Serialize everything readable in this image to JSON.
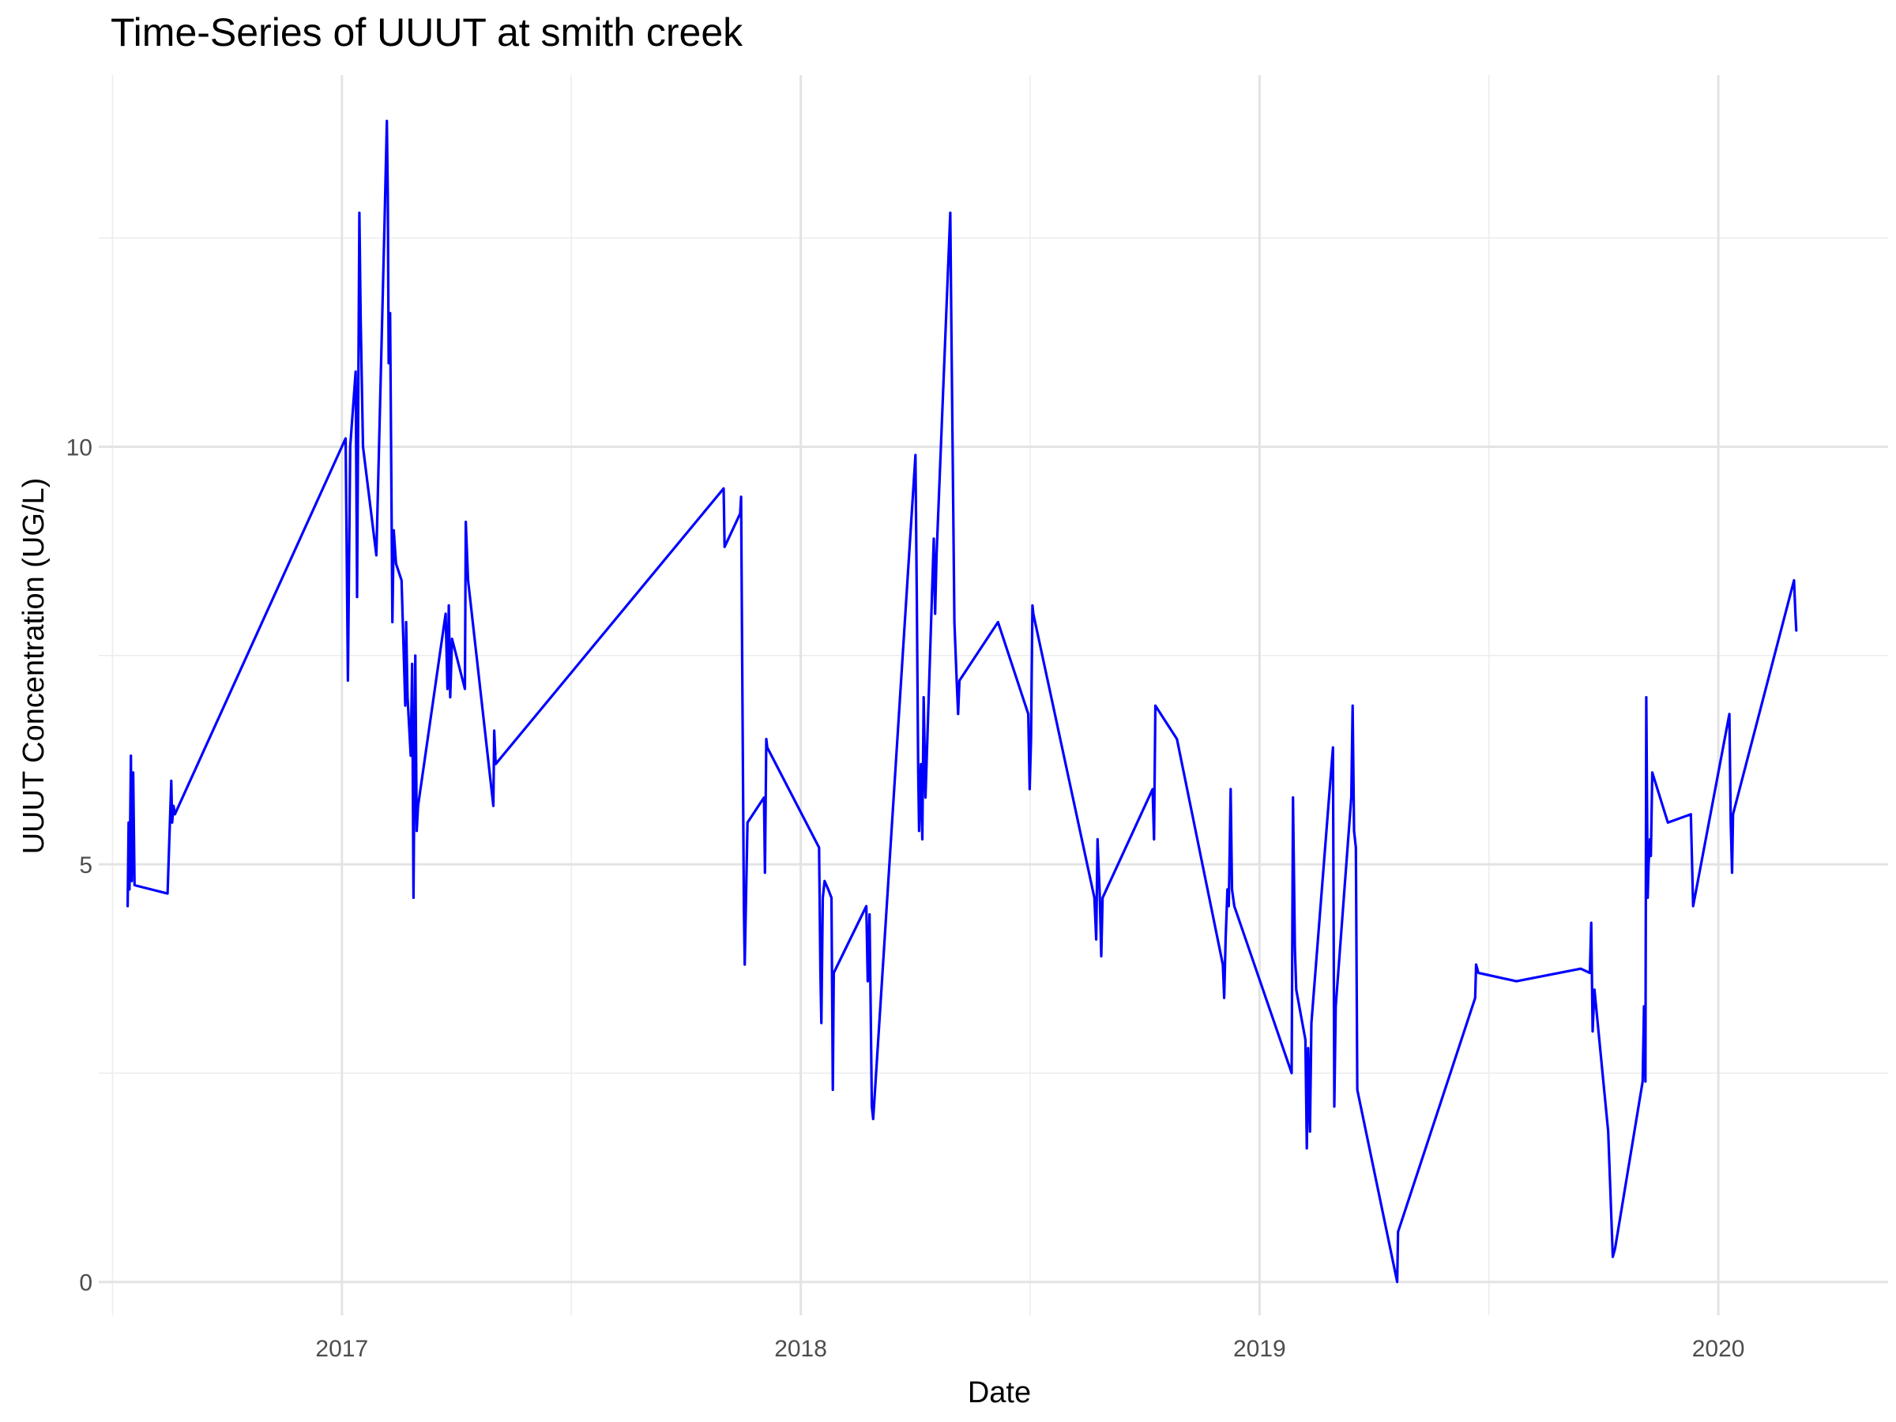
{
  "chart_data": {
    "type": "line",
    "title": "Time-Series of UUUT at smith creek",
    "xlabel": "Date",
    "ylabel": "UUUT Concentration (UG/L)",
    "x_ticks": [
      "2017",
      "2018",
      "2019",
      "2020"
    ],
    "y_ticks": [
      "0",
      "5",
      "10"
    ],
    "xlim": [
      2016.47,
      2020.37
    ],
    "ylim": [
      -0.4,
      14.45
    ],
    "grid": true,
    "line_color": "#0000ff",
    "series": [
      {
        "x": [
          2016.533,
          2016.535,
          2016.537,
          2016.54,
          2016.542,
          2016.545,
          2016.548,
          2016.62,
          2016.628,
          2016.63,
          2016.633,
          2016.636,
          2017.008,
          2017.01,
          2017.013,
          2017.018,
          2017.03,
          2017.033,
          2017.038,
          2017.041,
          2017.046,
          2017.075,
          2017.093,
          2017.098,
          2017.1,
          2017.102,
          2017.105,
          2017.11,
          2017.113,
          2017.118,
          2017.13,
          2017.138,
          2017.14,
          2017.143,
          2017.15,
          2017.153,
          2017.156,
          2017.16,
          2017.163,
          2017.166,
          2017.226,
          2017.23,
          2017.233,
          2017.236,
          2017.24,
          2017.268,
          2017.27,
          2017.275,
          2017.33,
          2017.332,
          2017.335,
          2017.832,
          2017.834,
          2017.868,
          2017.87,
          2017.873,
          2017.876,
          2017.878,
          2017.884,
          2017.92,
          2017.922,
          2017.925,
          2017.927,
          2018.04,
          2018.043,
          2018.045,
          2018.048,
          2018.052,
          2018.06,
          2018.067,
          2018.07,
          2018.072,
          2018.143,
          2018.146,
          2018.15,
          2018.155,
          2018.158,
          2018.25,
          2018.253,
          2018.256,
          2018.258,
          2018.262,
          2018.265,
          2018.268,
          2018.272,
          2018.29,
          2018.293,
          2018.296,
          2018.326,
          2018.328,
          2018.335,
          2018.34,
          2018.343,
          2018.346,
          2018.43,
          2018.496,
          2018.499,
          2018.502,
          2018.505,
          2018.507,
          2018.64,
          2018.644,
          2018.647,
          2018.652,
          2018.655,
          2018.658,
          2018.767,
          2018.77,
          2018.773,
          2018.82,
          2018.92,
          2018.923,
          2018.926,
          2018.93,
          2018.933,
          2018.937,
          2018.94,
          2018.945,
          2019.07,
          2019.073,
          2019.077,
          2019.08,
          2019.1,
          2019.103,
          2019.106,
          2019.11,
          2019.113,
          2019.16,
          2019.163,
          2019.166,
          2019.2,
          2019.203,
          2019.206,
          2019.21,
          2019.213,
          2019.3,
          2019.302,
          2019.47,
          2019.472,
          2019.477,
          2019.56,
          2019.7,
          2019.72,
          2019.723,
          2019.726,
          2019.73,
          2019.76,
          2019.77,
          2019.775,
          2019.835,
          2019.838,
          2019.841,
          2019.843,
          2019.846,
          2019.848,
          2019.851,
          2019.853,
          2019.856,
          2019.89,
          2019.94,
          2019.945,
          2020.024,
          2020.027,
          2020.03,
          2020.032,
          2020.165,
          2020.168,
          2020.17
        ],
        "values": [
          4.5,
          5.5,
          4.7,
          6.3,
          4.8,
          6.1,
          4.75,
          4.65,
          6.0,
          5.5,
          5.7,
          5.6,
          10.1,
          9.0,
          7.2,
          10.0,
          10.9,
          8.2,
          12.8,
          11.5,
          10.0,
          8.7,
          12.7,
          13.9,
          13.0,
          11.0,
          11.6,
          7.9,
          9.0,
          8.6,
          8.4,
          6.9,
          7.9,
          7.0,
          6.3,
          7.4,
          4.6,
          7.5,
          5.4,
          5.7,
          8.0,
          7.1,
          8.1,
          7.0,
          7.7,
          7.1,
          9.1,
          8.4,
          5.7,
          6.6,
          6.2,
          9.5,
          8.8,
          9.2,
          9.4,
          7.0,
          4.5,
          3.8,
          5.5,
          5.8,
          4.9,
          6.5,
          6.4,
          5.2,
          3.7,
          3.1,
          4.6,
          4.8,
          4.7,
          4.6,
          2.3,
          3.7,
          4.5,
          3.6,
          4.4,
          2.1,
          1.95,
          9.9,
          8.2,
          6.1,
          5.4,
          6.2,
          5.3,
          7.0,
          5.8,
          8.9,
          8.0,
          8.7,
          12.8,
          11.6,
          7.9,
          7.2,
          6.8,
          7.2,
          7.9,
          6.8,
          5.9,
          6.5,
          8.1,
          8.0,
          4.6,
          4.1,
          5.3,
          4.6,
          3.9,
          4.6,
          5.9,
          5.3,
          6.9,
          6.5,
          3.8,
          3.4,
          4.1,
          4.7,
          4.5,
          5.9,
          4.7,
          4.5,
          2.5,
          5.8,
          4.0,
          3.5,
          2.9,
          1.6,
          2.8,
          1.8,
          3.1,
          6.4,
          2.1,
          3.3,
          5.8,
          6.9,
          5.4,
          5.2,
          2.3,
          0.0,
          0.6,
          3.4,
          3.8,
          3.7,
          3.6,
          3.75,
          3.7,
          4.3,
          3.0,
          3.5,
          1.8,
          0.3,
          0.4,
          2.4,
          3.3,
          2.4,
          7.0,
          4.6,
          5.0,
          5.3,
          5.1,
          6.1,
          5.5,
          5.6,
          4.5,
          6.8,
          5.5,
          4.9,
          5.6,
          8.4,
          8.0,
          7.8
        ]
      }
    ]
  }
}
